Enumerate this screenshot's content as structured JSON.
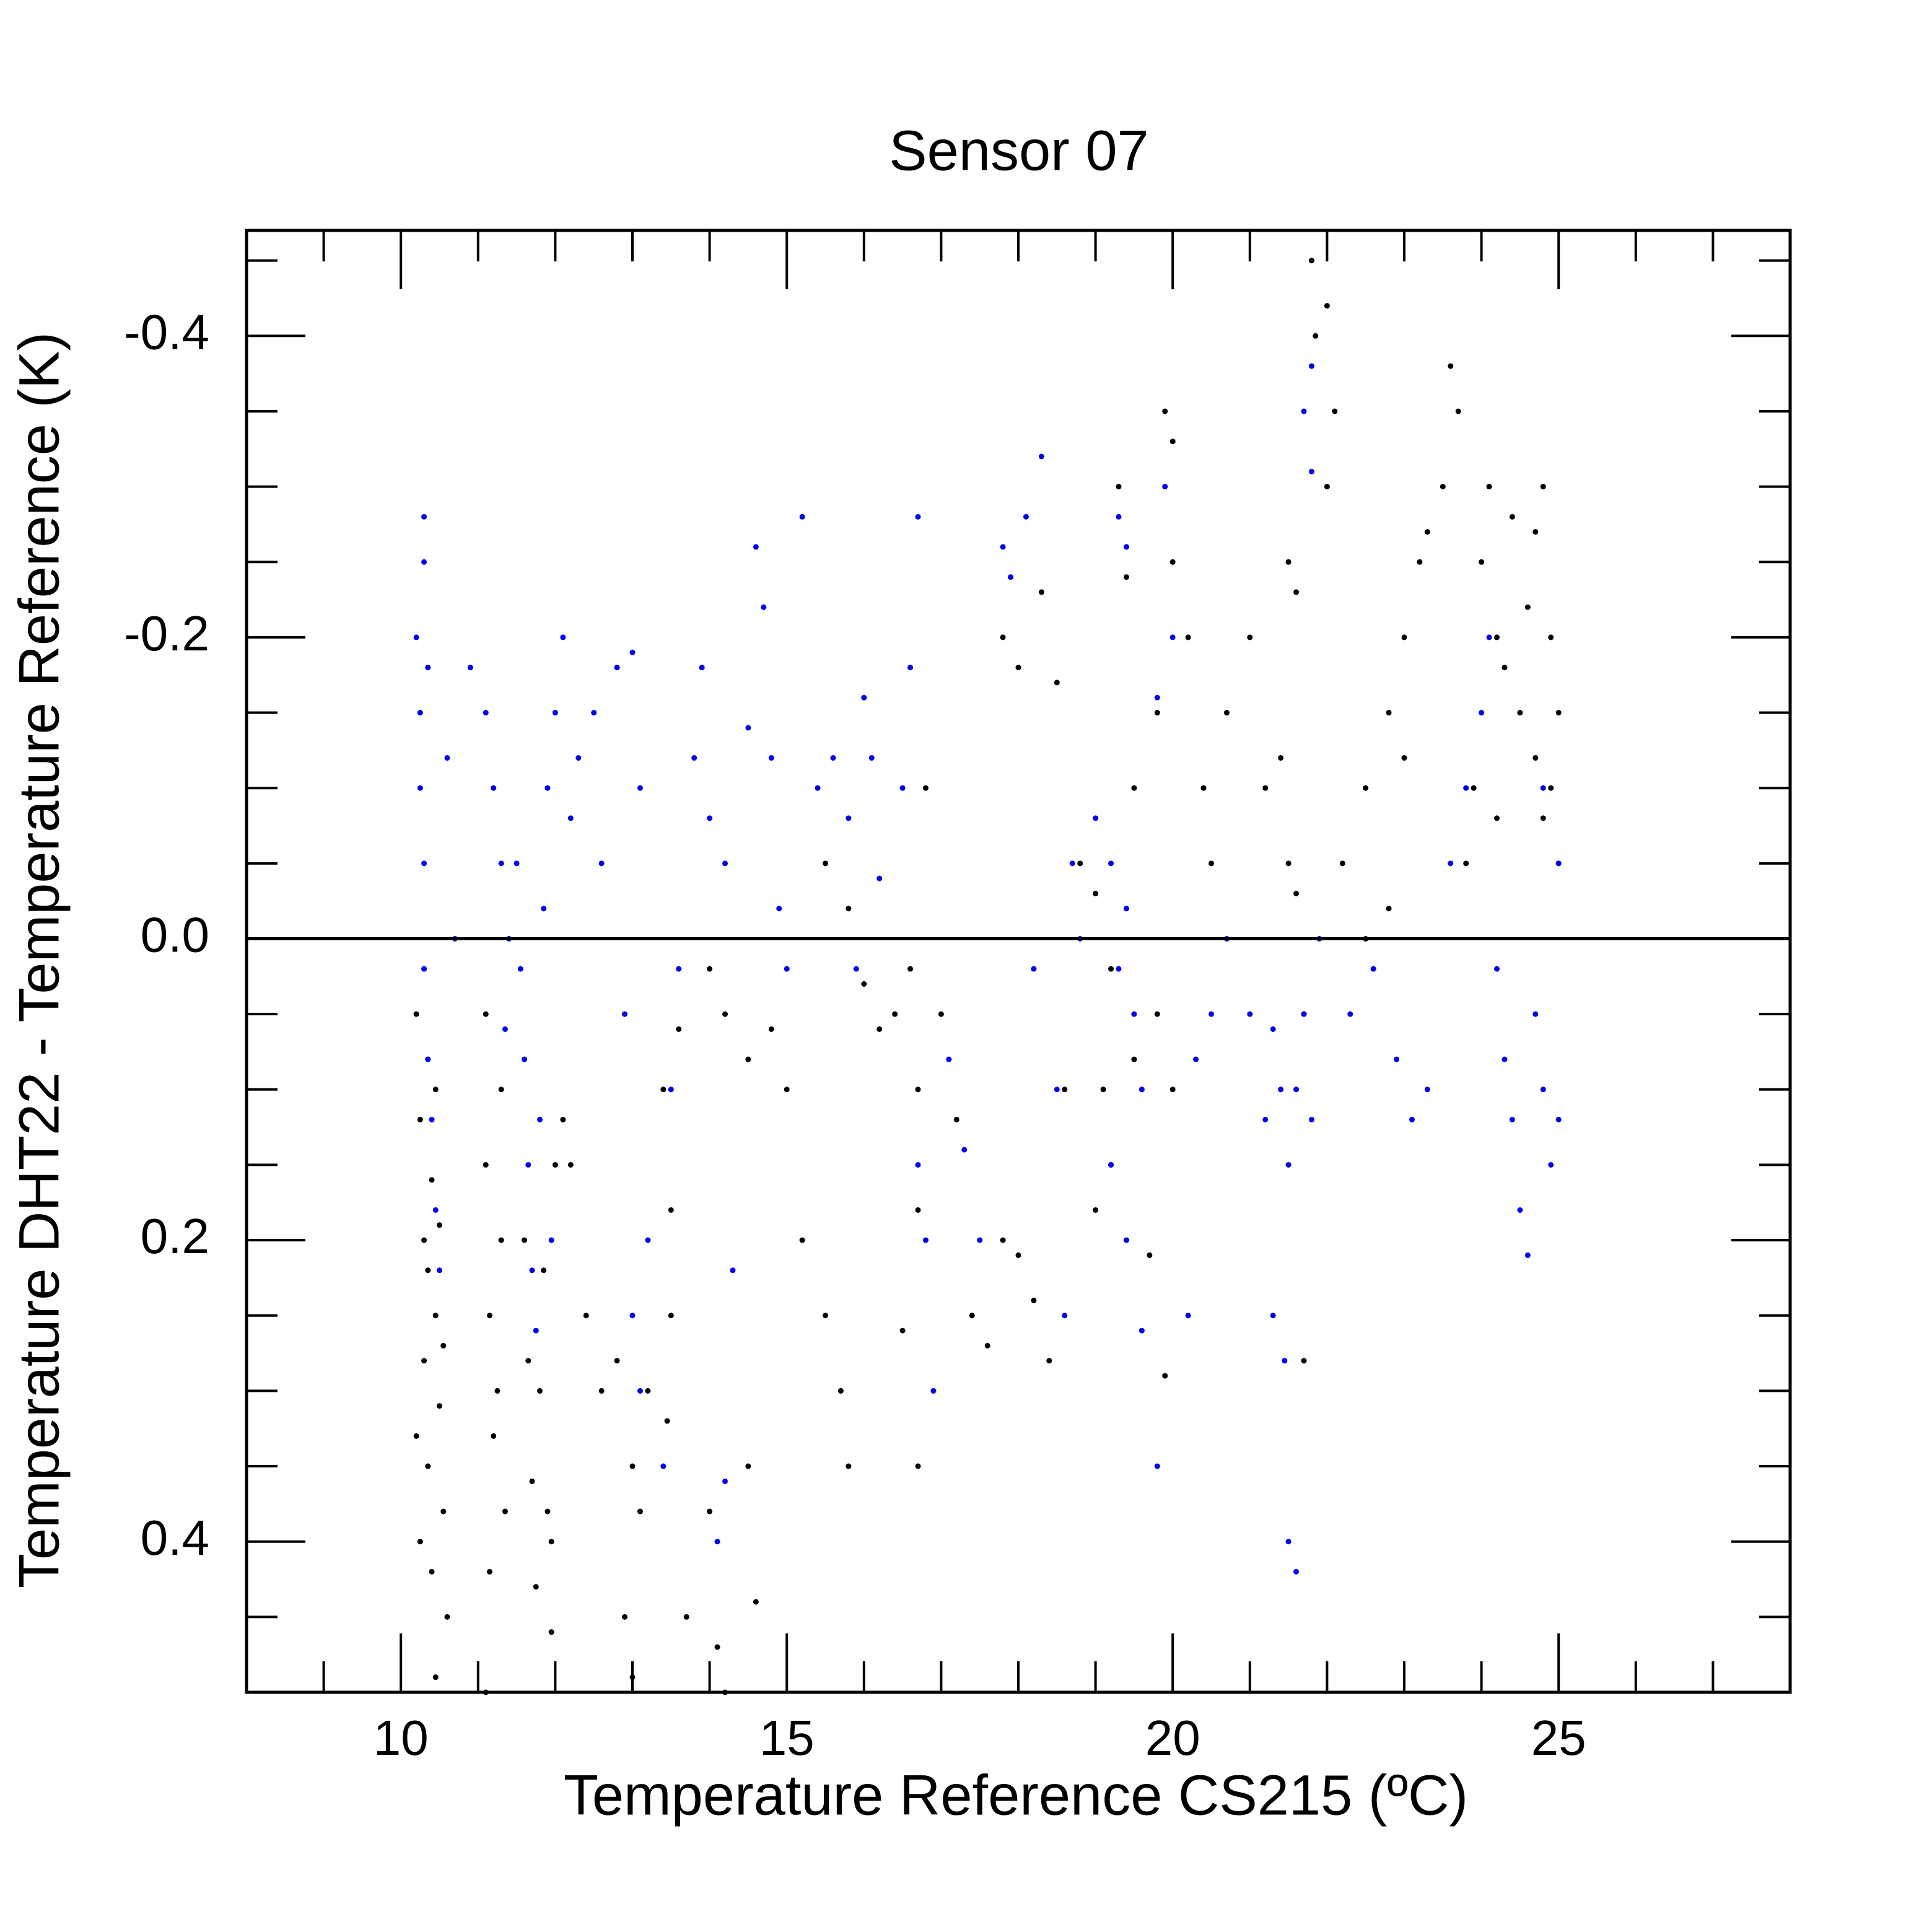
{
  "chart_data": {
    "type": "scatter",
    "title": "Sensor 07",
    "xlabel": "Temperature Reference CS215 (ºC)",
    "ylabel": "Temperature DHT22 - Temperature Reference (K)",
    "xlim": [
      8,
      28
    ],
    "ylim": [
      0.5,
      -0.47
    ],
    "y_inverted": true,
    "x_ticks": [
      "10",
      "15",
      "20",
      "25"
    ],
    "x_tick_values": [
      10,
      15,
      20,
      25
    ],
    "y_ticks": [
      "-0.4",
      "-0.2",
      "0.0",
      "0.2",
      "0.4"
    ],
    "y_tick_values": [
      -0.4,
      -0.2,
      0.0,
      0.2,
      0.4
    ],
    "zero_line": 0.0,
    "grid": false,
    "legend": "none",
    "series": [
      {
        "color": "#000000",
        "points": [
          [
            10.2,
            0.05
          ],
          [
            10.25,
            0.12
          ],
          [
            10.3,
            0.2
          ],
          [
            10.3,
            0.28
          ],
          [
            10.35,
            0.35
          ],
          [
            10.4,
            0.42
          ],
          [
            10.45,
            0.49
          ],
          [
            10.35,
            0.08
          ],
          [
            10.4,
            0.16
          ],
          [
            10.45,
            0.25
          ],
          [
            10.5,
            0.31
          ],
          [
            10.55,
            0.38
          ],
          [
            10.6,
            0.45
          ],
          [
            10.3,
            0.02
          ],
          [
            10.35,
            0.22
          ],
          [
            10.45,
            0.1
          ],
          [
            10.5,
            0.19
          ],
          [
            10.55,
            0.27
          ],
          [
            10.2,
            0.33
          ],
          [
            10.25,
            0.4
          ],
          [
            11.1,
            0.05
          ],
          [
            11.1,
            0.15
          ],
          [
            11.15,
            0.25
          ],
          [
            11.2,
            0.33
          ],
          [
            11.15,
            0.42
          ],
          [
            11.1,
            0.5
          ],
          [
            11.3,
            0.1
          ],
          [
            11.3,
            0.2
          ],
          [
            11.25,
            0.3
          ],
          [
            11.35,
            0.38
          ],
          [
            11.6,
            0.2
          ],
          [
            11.65,
            0.28
          ],
          [
            11.7,
            0.36
          ],
          [
            11.75,
            0.43
          ],
          [
            11.8,
            0.3
          ],
          [
            11.85,
            0.22
          ],
          [
            11.9,
            0.38
          ],
          [
            11.95,
            0.46
          ],
          [
            12.0,
            0.15
          ],
          [
            11.95,
            0.4
          ],
          [
            12.1,
            0.12
          ],
          [
            12.2,
            0.15
          ],
          [
            12.4,
            0.25
          ],
          [
            12.6,
            0.3
          ],
          [
            12.8,
            0.28
          ],
          [
            13.0,
            0.35
          ],
          [
            13.1,
            0.38
          ],
          [
            13.2,
            0.3
          ],
          [
            12.9,
            0.45
          ],
          [
            13.0,
            0.49
          ],
          [
            13.4,
            0.1
          ],
          [
            13.5,
            0.18
          ],
          [
            13.5,
            0.25
          ],
          [
            13.6,
            0.06
          ],
          [
            13.45,
            0.32
          ],
          [
            13.7,
            0.45
          ],
          [
            14.0,
            0.38
          ],
          [
            14.1,
            0.47
          ],
          [
            14.2,
            0.5
          ],
          [
            14.5,
            0.35
          ],
          [
            14.0,
            0.02
          ],
          [
            14.2,
            0.05
          ],
          [
            14.5,
            0.08
          ],
          [
            14.8,
            0.06
          ],
          [
            15.0,
            0.1
          ],
          [
            15.2,
            0.2
          ],
          [
            15.5,
            0.25
          ],
          [
            15.7,
            0.3
          ],
          [
            15.8,
            0.35
          ],
          [
            14.6,
            0.44
          ],
          [
            15.5,
            -0.05
          ],
          [
            15.8,
            -0.02
          ],
          [
            16.0,
            0.03
          ],
          [
            16.2,
            0.06
          ],
          [
            16.4,
            0.05
          ],
          [
            16.6,
            0.02
          ],
          [
            16.7,
            0.1
          ],
          [
            16.7,
            0.18
          ],
          [
            16.5,
            0.26
          ],
          [
            16.7,
            0.35
          ],
          [
            16.8,
            -0.1
          ],
          [
            17.0,
            0.05
          ],
          [
            17.2,
            0.12
          ],
          [
            17.4,
            0.25
          ],
          [
            17.6,
            0.27
          ],
          [
            17.8,
            0.2
          ],
          [
            18.0,
            0.21
          ],
          [
            18.2,
            0.24
          ],
          [
            18.4,
            0.28
          ],
          [
            18.6,
            0.1
          ],
          [
            17.8,
            -0.2
          ],
          [
            18.0,
            -0.18
          ],
          [
            18.3,
            -0.23
          ],
          [
            18.5,
            -0.17
          ],
          [
            18.8,
            -0.05
          ],
          [
            19.0,
            -0.03
          ],
          [
            19.2,
            0.02
          ],
          [
            19.1,
            0.1
          ],
          [
            19.3,
            -0.3
          ],
          [
            19.4,
            -0.24
          ],
          [
            19.0,
            0.18
          ],
          [
            19.2,
            0.15
          ],
          [
            19.5,
            0.08
          ],
          [
            19.8,
            0.05
          ],
          [
            20.0,
            0.1
          ],
          [
            19.7,
            0.21
          ],
          [
            19.9,
            0.29
          ],
          [
            19.5,
            -0.1
          ],
          [
            19.8,
            -0.15
          ],
          [
            20.0,
            -0.25
          ],
          [
            20.2,
            -0.2
          ],
          [
            20.4,
            -0.1
          ],
          [
            20.5,
            -0.05
          ],
          [
            20.7,
            -0.15
          ],
          [
            21.0,
            -0.2
          ],
          [
            21.2,
            -0.1
          ],
          [
            21.4,
            -0.12
          ],
          [
            21.5,
            -0.05
          ],
          [
            21.6,
            -0.03
          ],
          [
            21.7,
            0.05
          ],
          [
            19.9,
            -0.35
          ],
          [
            20.0,
            -0.33
          ],
          [
            21.5,
            -0.25
          ],
          [
            21.6,
            -0.23
          ],
          [
            21.8,
            -0.45
          ],
          [
            21.85,
            -0.4
          ],
          [
            22.0,
            -0.42
          ],
          [
            22.0,
            -0.3
          ],
          [
            22.1,
            -0.35
          ],
          [
            21.7,
            0.28
          ],
          [
            22.2,
            -0.05
          ],
          [
            22.5,
            -0.1
          ],
          [
            22.8,
            -0.15
          ],
          [
            23.0,
            -0.2
          ],
          [
            23.2,
            -0.25
          ],
          [
            23.5,
            -0.3
          ],
          [
            23.6,
            -0.38
          ],
          [
            23.7,
            -0.35
          ],
          [
            23.3,
            -0.27
          ],
          [
            23.0,
            -0.12
          ],
          [
            24.0,
            -0.25
          ],
          [
            24.1,
            -0.3
          ],
          [
            24.2,
            -0.2
          ],
          [
            24.3,
            -0.18
          ],
          [
            24.4,
            -0.28
          ],
          [
            24.5,
            -0.15
          ],
          [
            24.6,
            -0.22
          ],
          [
            24.7,
            -0.27
          ],
          [
            24.8,
            -0.3
          ],
          [
            24.9,
            -0.2
          ],
          [
            25.0,
            -0.15
          ],
          [
            25.0,
            -0.05
          ],
          [
            24.9,
            -0.1
          ],
          [
            24.8,
            -0.08
          ],
          [
            24.7,
            -0.12
          ],
          [
            22.5,
            0.0
          ],
          [
            22.8,
            -0.02
          ],
          [
            23.8,
            -0.05
          ],
          [
            23.9,
            -0.1
          ],
          [
            24.2,
            -0.08
          ]
        ]
      },
      {
        "color": "#0000ee",
        "points": [
          [
            10.2,
            -0.2
          ],
          [
            10.25,
            -0.15
          ],
          [
            10.3,
            -0.25
          ],
          [
            10.3,
            -0.28
          ],
          [
            10.35,
            -0.18
          ],
          [
            10.25,
            -0.1
          ],
          [
            10.3,
            -0.05
          ],
          [
            10.3,
            0.02
          ],
          [
            10.35,
            0.08
          ],
          [
            10.4,
            0.12
          ],
          [
            10.45,
            0.18
          ],
          [
            10.5,
            0.22
          ],
          [
            10.6,
            -0.12
          ],
          [
            10.7,
            0.0
          ],
          [
            10.9,
            -0.18
          ],
          [
            11.1,
            -0.15
          ],
          [
            11.2,
            -0.1
          ],
          [
            11.3,
            -0.05
          ],
          [
            11.4,
            0.0
          ],
          [
            11.35,
            0.06
          ],
          [
            11.5,
            -0.05
          ],
          [
            11.55,
            0.02
          ],
          [
            11.6,
            0.08
          ],
          [
            11.65,
            0.15
          ],
          [
            11.7,
            0.22
          ],
          [
            11.75,
            0.26
          ],
          [
            11.8,
            0.12
          ],
          [
            11.85,
            -0.02
          ],
          [
            11.9,
            -0.1
          ],
          [
            11.95,
            0.2
          ],
          [
            12.0,
            -0.15
          ],
          [
            12.1,
            -0.2
          ],
          [
            12.2,
            -0.08
          ],
          [
            12.3,
            -0.12
          ],
          [
            12.5,
            -0.15
          ],
          [
            12.6,
            -0.05
          ],
          [
            12.8,
            -0.18
          ],
          [
            13.0,
            -0.19
          ],
          [
            13.1,
            -0.1
          ],
          [
            12.9,
            0.05
          ],
          [
            13.0,
            0.25
          ],
          [
            13.1,
            0.3
          ],
          [
            13.2,
            0.2
          ],
          [
            13.4,
            0.35
          ],
          [
            13.5,
            0.1
          ],
          [
            13.6,
            0.02
          ],
          [
            13.8,
            -0.12
          ],
          [
            13.9,
            -0.18
          ],
          [
            14.0,
            -0.08
          ],
          [
            14.2,
            -0.05
          ],
          [
            14.1,
            0.4
          ],
          [
            14.2,
            0.36
          ],
          [
            14.3,
            0.22
          ],
          [
            14.5,
            -0.14
          ],
          [
            14.6,
            -0.26
          ],
          [
            14.7,
            -0.22
          ],
          [
            14.8,
            -0.12
          ],
          [
            14.9,
            -0.02
          ],
          [
            15.0,
            0.02
          ],
          [
            15.2,
            -0.28
          ],
          [
            15.4,
            -0.1
          ],
          [
            15.6,
            -0.12
          ],
          [
            15.8,
            -0.08
          ],
          [
            16.0,
            -0.16
          ],
          [
            16.1,
            -0.12
          ],
          [
            15.9,
            0.02
          ],
          [
            16.2,
            -0.04
          ],
          [
            16.5,
            -0.1
          ],
          [
            16.6,
            -0.18
          ],
          [
            16.7,
            -0.28
          ],
          [
            16.7,
            0.15
          ],
          [
            16.8,
            0.2
          ],
          [
            16.9,
            0.3
          ],
          [
            17.1,
            0.08
          ],
          [
            17.3,
            0.14
          ],
          [
            17.5,
            0.2
          ],
          [
            17.8,
            -0.26
          ],
          [
            17.9,
            -0.24
          ],
          [
            18.1,
            -0.28
          ],
          [
            18.3,
            -0.32
          ],
          [
            18.2,
            0.02
          ],
          [
            18.5,
            0.1
          ],
          [
            18.6,
            0.25
          ],
          [
            18.7,
            -0.05
          ],
          [
            18.8,
            0.0
          ],
          [
            19.0,
            -0.08
          ],
          [
            19.2,
            -0.05
          ],
          [
            19.3,
            0.02
          ],
          [
            19.4,
            -0.02
          ],
          [
            19.5,
            0.05
          ],
          [
            19.3,
            -0.28
          ],
          [
            19.4,
            -0.26
          ],
          [
            19.2,
            0.15
          ],
          [
            19.4,
            0.2
          ],
          [
            19.6,
            0.26
          ],
          [
            19.8,
            0.35
          ],
          [
            19.6,
            0.1
          ],
          [
            19.8,
            -0.16
          ],
          [
            20.0,
            -0.2
          ],
          [
            19.9,
            -0.3
          ],
          [
            20.2,
            0.25
          ],
          [
            20.3,
            0.08
          ],
          [
            20.5,
            0.05
          ],
          [
            20.7,
            0.0
          ],
          [
            21.0,
            0.05
          ],
          [
            21.2,
            0.12
          ],
          [
            21.3,
            0.06
          ],
          [
            21.4,
            0.1
          ],
          [
            21.5,
            0.15
          ],
          [
            21.6,
            0.1
          ],
          [
            21.7,
            0.05
          ],
          [
            21.8,
            0.12
          ],
          [
            21.7,
            -0.35
          ],
          [
            21.8,
            -0.38
          ],
          [
            21.8,
            -0.31
          ],
          [
            21.5,
            0.4
          ],
          [
            21.6,
            0.42
          ],
          [
            21.45,
            0.28
          ],
          [
            21.3,
            0.25
          ],
          [
            21.9,
            0.0
          ],
          [
            22.3,
            0.05
          ],
          [
            22.6,
            0.02
          ],
          [
            22.9,
            0.08
          ],
          [
            23.1,
            0.12
          ],
          [
            23.3,
            0.1
          ],
          [
            23.6,
            -0.05
          ],
          [
            23.8,
            -0.1
          ],
          [
            24.0,
            -0.15
          ],
          [
            24.1,
            -0.2
          ],
          [
            24.2,
            0.02
          ],
          [
            24.3,
            0.08
          ],
          [
            24.4,
            0.12
          ],
          [
            24.5,
            0.18
          ],
          [
            24.6,
            0.21
          ],
          [
            24.7,
            0.05
          ],
          [
            24.8,
            0.1
          ],
          [
            24.9,
            0.15
          ],
          [
            25.0,
            0.12
          ],
          [
            25.0,
            -0.05
          ],
          [
            24.8,
            -0.1
          ]
        ]
      }
    ]
  }
}
